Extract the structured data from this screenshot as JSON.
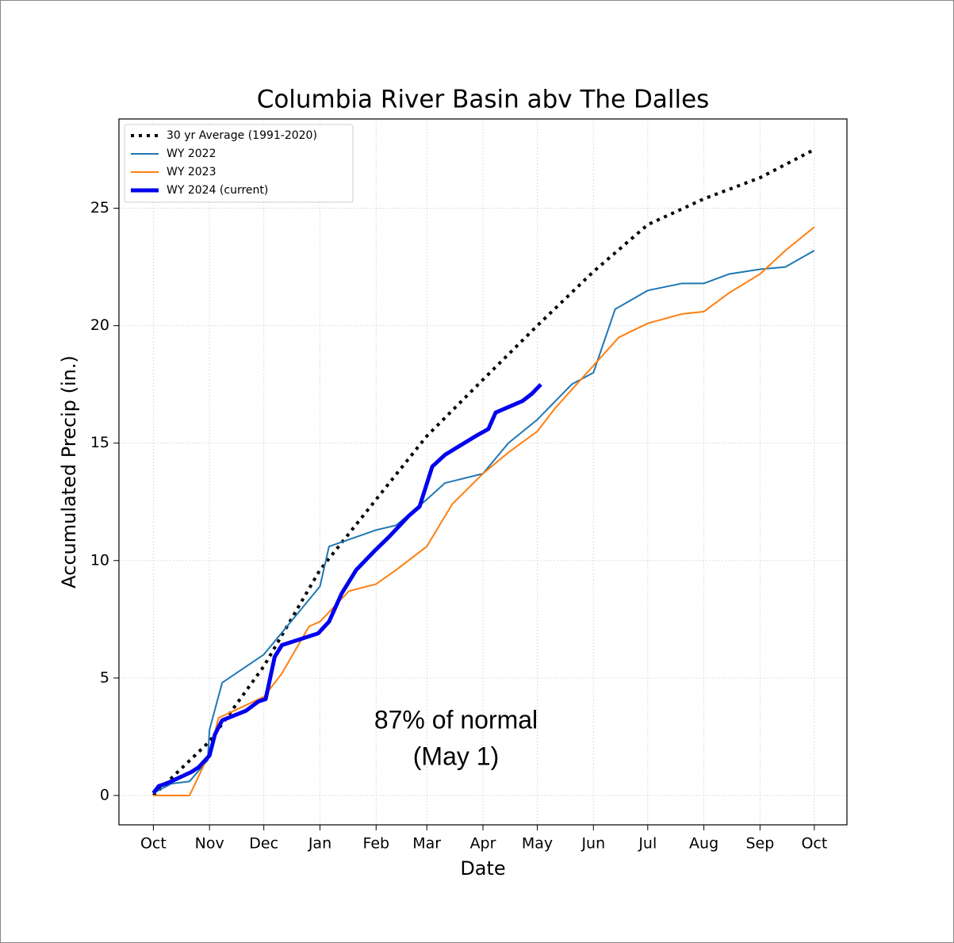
{
  "chart_data": {
    "type": "line",
    "title": "Columbia River Basin abv The Dalles",
    "x_label": "Date",
    "y_label": "Accumulated Precip (in.)",
    "annotation": [
      "87% of normal",
      "(May 1)"
    ],
    "xlim": [
      -19,
      383
    ],
    "xticks": [
      {
        "value": 0,
        "label": "Oct"
      },
      {
        "value": 31,
        "label": "Nov"
      },
      {
        "value": 61,
        "label": "Dec"
      },
      {
        "value": 92,
        "label": "Jan"
      },
      {
        "value": 123,
        "label": "Feb"
      },
      {
        "value": 151,
        "label": "Mar"
      },
      {
        "value": 182,
        "label": "Apr"
      },
      {
        "value": 212,
        "label": "May"
      },
      {
        "value": 243,
        "label": "Jun"
      },
      {
        "value": 273,
        "label": "Jul"
      },
      {
        "value": 304,
        "label": "Aug"
      },
      {
        "value": 335,
        "label": "Sep"
      },
      {
        "value": 365,
        "label": "Oct"
      }
    ],
    "ylim": [
      -1.25,
      28.8
    ],
    "yticks": [
      0,
      5,
      10,
      15,
      20,
      25
    ],
    "grid": true,
    "legend": "upper left",
    "series": [
      {
        "name": "30 yr Average (1991-2020)",
        "color": "#000000",
        "linestyle": "dotted",
        "linewidth": 4,
        "x": [
          0,
          31,
          61,
          92,
          123,
          151,
          182,
          212,
          243,
          273,
          304,
          335,
          365
        ],
        "values": [
          0,
          2.3,
          5.5,
          9.6,
          12.6,
          15.3,
          17.7,
          20.0,
          22.3,
          24.3,
          25.4,
          26.3,
          27.5
        ]
      },
      {
        "name": "WY 2022",
        "color": "#1f77b4",
        "linestyle": "solid",
        "linewidth": 2,
        "x": [
          0,
          10,
          20,
          30,
          31,
          38,
          61,
          92,
          97,
          123,
          134,
          151,
          161,
          182,
          196,
          212,
          231,
          243,
          255,
          273,
          292,
          304,
          318,
          335,
          349,
          365
        ],
        "values": [
          0.1,
          0.5,
          0.6,
          1.5,
          2.8,
          4.8,
          6.0,
          8.9,
          10.6,
          11.3,
          11.5,
          12.6,
          13.3,
          13.7,
          15.0,
          16.0,
          17.5,
          18.0,
          20.7,
          21.5,
          21.8,
          21.8,
          22.2,
          22.4,
          22.5,
          23.2
        ]
      },
      {
        "name": "WY 2023",
        "color": "#ff7f0e",
        "linestyle": "solid",
        "linewidth": 2,
        "x": [
          0,
          20,
          31,
          36,
          61,
          71,
          86,
          92,
          108,
          123,
          134,
          151,
          165,
          182,
          196,
          212,
          222,
          243,
          257,
          273,
          292,
          304,
          318,
          335,
          349,
          365
        ],
        "values": [
          0,
          0,
          1.8,
          3.3,
          4.2,
          5.2,
          7.2,
          7.4,
          8.7,
          9.0,
          9.6,
          10.6,
          12.4,
          13.7,
          14.6,
          15.5,
          16.5,
          18.3,
          19.5,
          20.1,
          20.5,
          20.6,
          21.4,
          22.2,
          23.2,
          24.2
        ]
      },
      {
        "name": "WY 2024 (current)",
        "color": "#0000ee",
        "linestyle": "solid",
        "linewidth": 5,
        "x": [
          0,
          3,
          7,
          21,
          25,
          31,
          34,
          38,
          51,
          58,
          62,
          67,
          71,
          91,
          97,
          104,
          112,
          122,
          130,
          141,
          147,
          154,
          161,
          178,
          185,
          189,
          204,
          209,
          214
        ],
        "values": [
          0.1,
          0.4,
          0.5,
          1.0,
          1.2,
          1.7,
          2.6,
          3.2,
          3.6,
          4.0,
          4.1,
          5.9,
          6.4,
          6.9,
          7.4,
          8.6,
          9.6,
          10.4,
          11.0,
          11.9,
          12.3,
          14.0,
          14.5,
          15.3,
          15.6,
          16.3,
          16.8,
          17.1,
          17.5
        ]
      }
    ]
  }
}
